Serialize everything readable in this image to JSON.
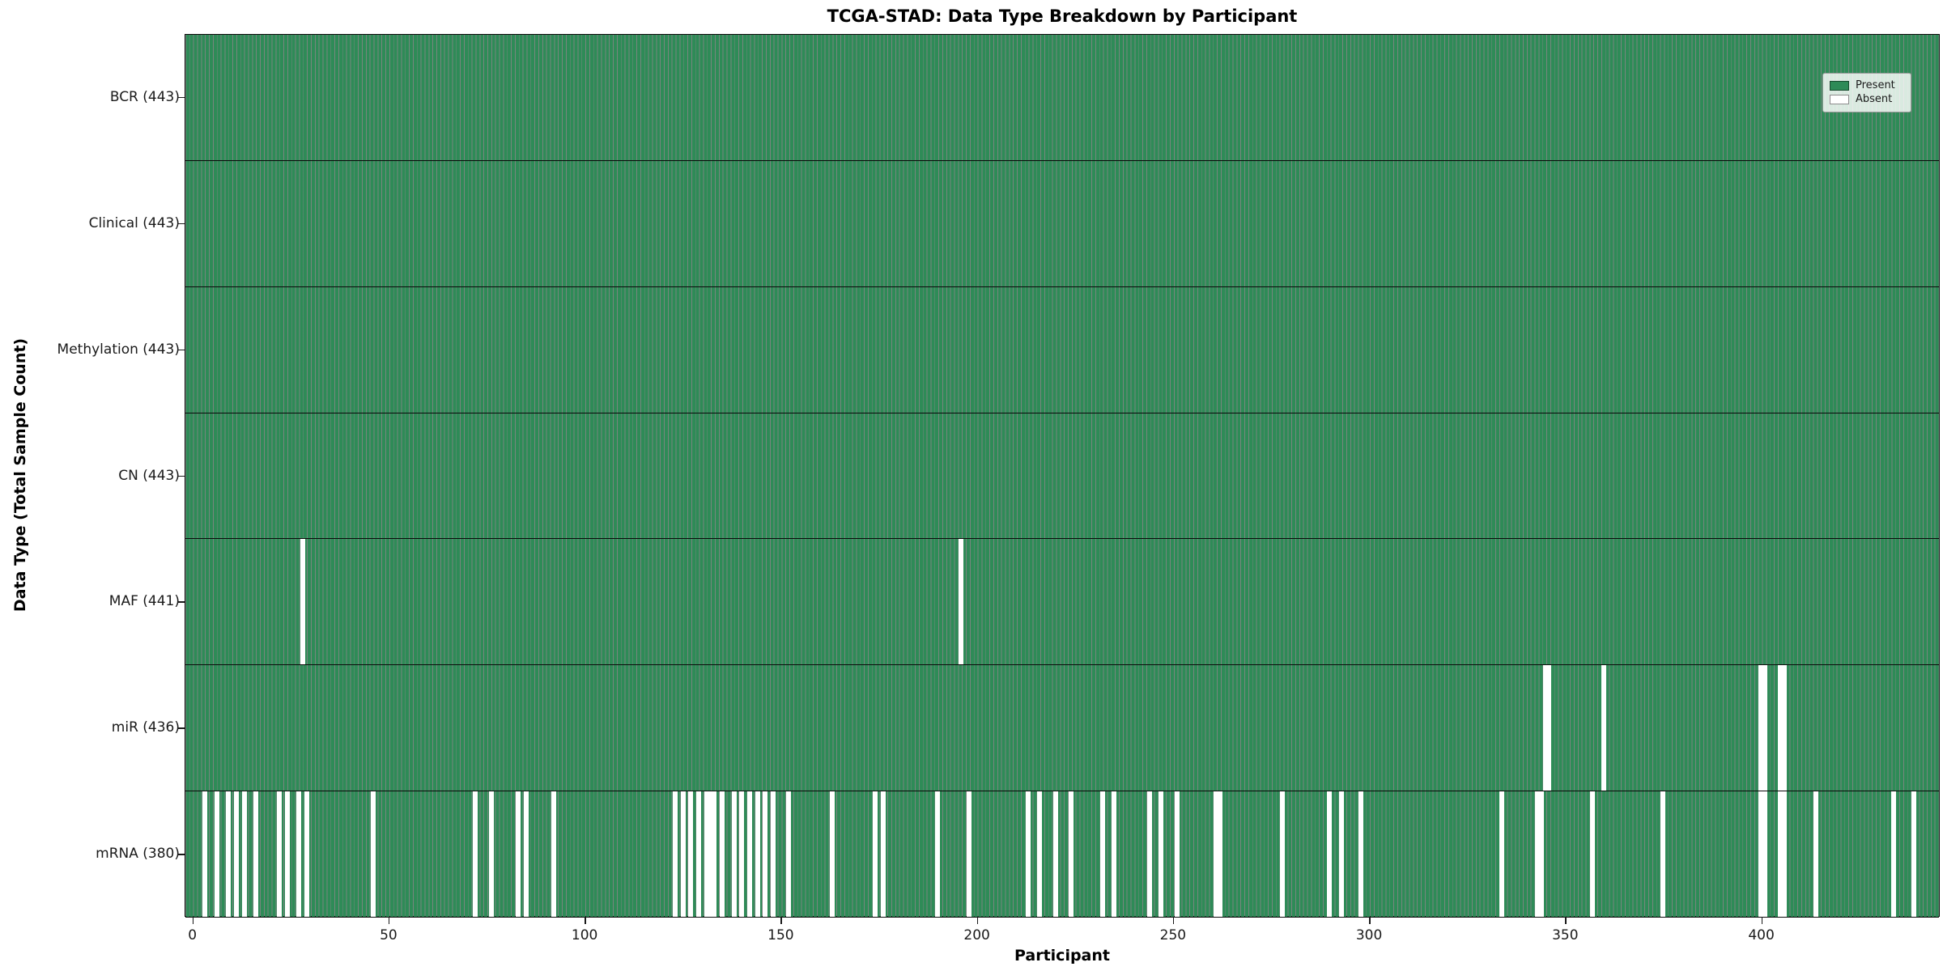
{
  "title": "TCGA-STAD: Data Type Breakdown by Participant",
  "xlabel": "Participant",
  "ylabel": "Data Type (Total Sample Count)",
  "legend": {
    "present_label": "Present",
    "absent_label": "Absent"
  },
  "colors": {
    "present": "#2E8B57",
    "absent": "#FFFFFF",
    "bar_edge": "#0F2E1D",
    "axis_text": "#1A1A1A"
  },
  "chart_data": {
    "type": "heatmap",
    "title": "TCGA-STAD: Data Type Breakdown by Participant",
    "xlabel": "Participant",
    "ylabel": "Data Type (Total Sample Count)",
    "n_participants": 443,
    "xlim": [
      -1.5,
      446
    ],
    "x_ticks": [
      0,
      50,
      100,
      150,
      200,
      250,
      300,
      350,
      400
    ],
    "grid": false,
    "legend_position": "upper right",
    "legend_entries": [
      {
        "label": "Present",
        "color": "#2E8B57"
      },
      {
        "label": "Absent",
        "color": "#FFFFFF"
      }
    ],
    "rows": [
      {
        "label": "BCR (443)",
        "name": "BCR",
        "total": 443,
        "absent": []
      },
      {
        "label": "Clinical (443)",
        "name": "Clinical",
        "total": 443,
        "absent": []
      },
      {
        "label": "Methylation (443)",
        "name": "Methylation",
        "total": 443,
        "absent": []
      },
      {
        "label": "CN (443)",
        "name": "CN",
        "total": 443,
        "absent": []
      },
      {
        "label": "MAF (441)",
        "name": "MAF",
        "total": 441,
        "absent": [
          28,
          196
        ]
      },
      {
        "label": "miR (436)",
        "name": "miR",
        "total": 436,
        "absent": [
          345,
          346,
          360,
          400,
          401,
          405,
          406
        ]
      },
      {
        "label": "mRNA (380)",
        "name": "mRNA",
        "total": 380,
        "absent": [
          3,
          6,
          9,
          11,
          13,
          16,
          22,
          24,
          27,
          29,
          46,
          72,
          76,
          83,
          85,
          92,
          123,
          125,
          127,
          129,
          131,
          132,
          133,
          135,
          138,
          140,
          142,
          144,
          146,
          148,
          152,
          163,
          174,
          176,
          190,
          198,
          213,
          216,
          220,
          224,
          232,
          235,
          244,
          247,
          251,
          261,
          262,
          278,
          290,
          293,
          298,
          334,
          343,
          344,
          357,
          375,
          400,
          401,
          405,
          406,
          414,
          434,
          439
        ]
      }
    ]
  }
}
